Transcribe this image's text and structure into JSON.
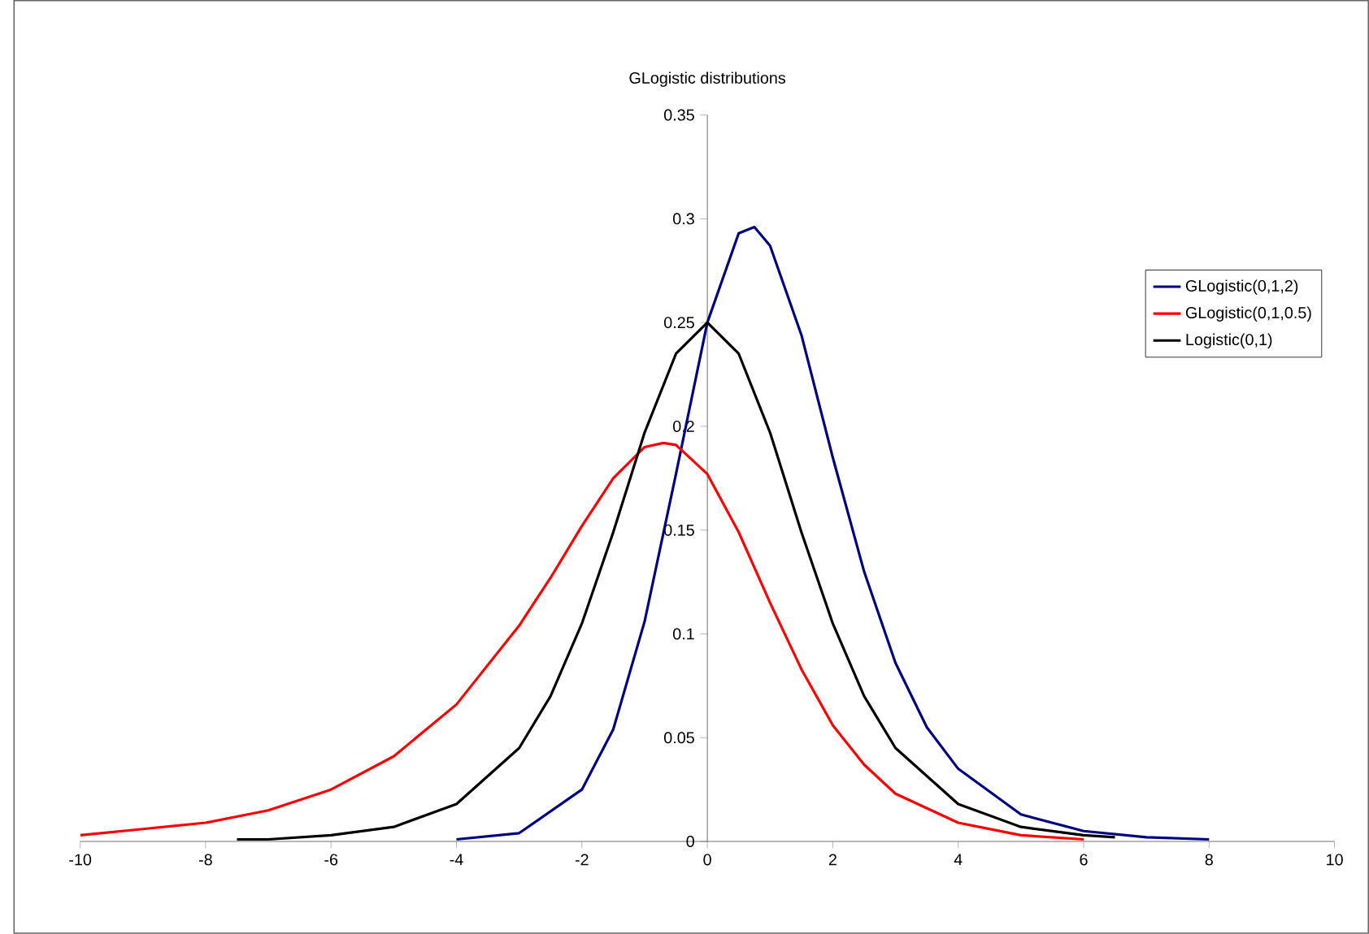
{
  "chart_data": {
    "type": "line",
    "title": "GLogistic distributions",
    "series": [
      {
        "name": "GLogistic(0,1,2)",
        "color": "#000080",
        "x": [
          -4,
          -3,
          -2,
          -1.5,
          -1,
          -0.5,
          0,
          0.5,
          0.75,
          1,
          1.5,
          2,
          2.5,
          3,
          3.5,
          4,
          5,
          6,
          7,
          8
        ],
        "values": [
          0.001,
          0.004,
          0.025,
          0.054,
          0.106,
          0.177,
          0.25,
          0.293,
          0.296,
          0.287,
          0.244,
          0.185,
          0.13,
          0.086,
          0.055,
          0.035,
          0.013,
          0.005,
          0.002,
          0.001
        ]
      },
      {
        "name": "GLogistic(0,1,0.5)",
        "color": "#ff0000",
        "x": [
          -10,
          -9,
          -8,
          -7,
          -6,
          -5,
          -4,
          -3,
          -2.5,
          -2,
          -1.5,
          -1,
          -0.7,
          -0.5,
          0,
          0.5,
          1,
          1.5,
          2,
          2.5,
          3,
          4,
          5,
          6
        ],
        "values": [
          0.003,
          0.006,
          0.009,
          0.015,
          0.025,
          0.041,
          0.066,
          0.104,
          0.127,
          0.152,
          0.175,
          0.19,
          0.192,
          0.191,
          0.177,
          0.149,
          0.115,
          0.083,
          0.056,
          0.037,
          0.023,
          0.009,
          0.003,
          0.001
        ]
      },
      {
        "name": "Logistic(0,1)",
        "color": "#000000",
        "x": [
          -7.5,
          -7,
          -6,
          -5,
          -4,
          -3,
          -2.5,
          -2,
          -1.5,
          -1,
          -0.5,
          0,
          0.5,
          1,
          1.5,
          2,
          2.5,
          3,
          4,
          5,
          6,
          6.5
        ],
        "values": [
          0.001,
          0.001,
          0.003,
          0.007,
          0.018,
          0.045,
          0.07,
          0.105,
          0.149,
          0.197,
          0.235,
          0.25,
          0.235,
          0.197,
          0.149,
          0.105,
          0.07,
          0.045,
          0.018,
          0.007,
          0.003,
          0.002
        ]
      }
    ],
    "xlim": [
      -10,
      10
    ],
    "xticks": [
      -10,
      -8,
      -6,
      -4,
      -2,
      0,
      2,
      4,
      6,
      8,
      10
    ],
    "ylim": [
      0,
      0.35
    ],
    "yticks": [
      0,
      0.05,
      0.1,
      0.15,
      0.2,
      0.25,
      0.3,
      0.35
    ],
    "legend": "top right",
    "marker": "none",
    "line_style": "solid",
    "grid": false
  }
}
